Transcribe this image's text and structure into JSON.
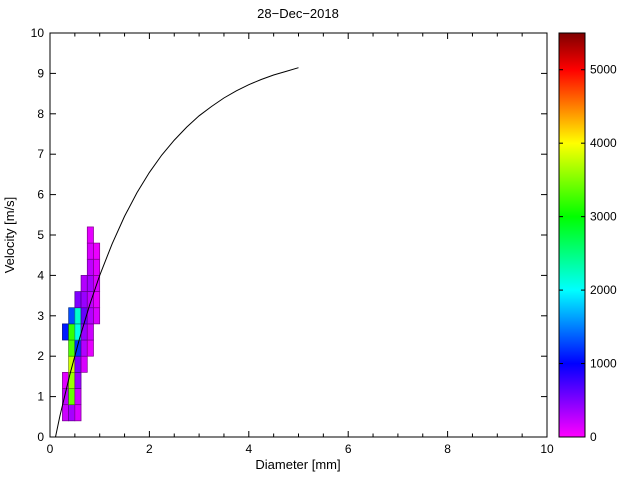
{
  "chart_data": {
    "type": "heatmap",
    "title": "28−Dec−2018",
    "xlabel": "Diameter [mm]",
    "ylabel": "Velocity [m/s]",
    "xlim": [
      0,
      10
    ],
    "ylim": [
      0,
      10
    ],
    "xticks": [
      0,
      2,
      4,
      6,
      8,
      10
    ],
    "x_minor_step": 0.5,
    "yticks": [
      0,
      1,
      2,
      3,
      4,
      5,
      6,
      7,
      8,
      9,
      10
    ],
    "grid": false,
    "legend": "none",
    "axis_color": "#000000",
    "background_color": "#ffffff",
    "colorbar": {
      "position": "right",
      "vmin": 0,
      "vmax": 5500,
      "ticks": [
        0,
        1000,
        2000,
        3000,
        4000,
        5000
      ],
      "colormap": [
        {
          "value": 0,
          "color": "#ff00ff"
        },
        {
          "value": 1000,
          "color": "#0000ff"
        },
        {
          "value": 2000,
          "color": "#00ffff"
        },
        {
          "value": 3000,
          "color": "#00ff00"
        },
        {
          "value": 4000,
          "color": "#ffff00"
        },
        {
          "value": 5000,
          "color": "#ff0000"
        },
        {
          "value": 5500,
          "color": "#7f0000"
        }
      ]
    },
    "cell_size": {
      "w": 0.125,
      "h": 0.4
    },
    "cells": [
      {
        "d": 0.25,
        "v": 0.4,
        "count": 200
      },
      {
        "d": 0.375,
        "v": 0.4,
        "count": 350
      },
      {
        "d": 0.5,
        "v": 0.4,
        "count": 150
      },
      {
        "d": 0.25,
        "v": 0.8,
        "count": 250
      },
      {
        "d": 0.375,
        "v": 0.8,
        "count": 3400
      },
      {
        "d": 0.5,
        "v": 0.8,
        "count": 200
      },
      {
        "d": 0.25,
        "v": 1.2,
        "count": 120
      },
      {
        "d": 0.375,
        "v": 1.2,
        "count": 3600
      },
      {
        "d": 0.5,
        "v": 1.2,
        "count": 400
      },
      {
        "d": 0.375,
        "v": 1.6,
        "count": 3800
      },
      {
        "d": 0.5,
        "v": 1.6,
        "count": 500
      },
      {
        "d": 0.625,
        "v": 1.6,
        "count": 150
      },
      {
        "d": 0.375,
        "v": 2.0,
        "count": 3300
      },
      {
        "d": 0.5,
        "v": 2.0,
        "count": 1200
      },
      {
        "d": 0.625,
        "v": 2.0,
        "count": 300
      },
      {
        "d": 0.75,
        "v": 2.0,
        "count": 100
      },
      {
        "d": 0.25,
        "v": 2.4,
        "count": 1100
      },
      {
        "d": 0.375,
        "v": 2.4,
        "count": 3200
      },
      {
        "d": 0.5,
        "v": 2.4,
        "count": 2100
      },
      {
        "d": 0.625,
        "v": 2.4,
        "count": 400
      },
      {
        "d": 0.75,
        "v": 2.4,
        "count": 200
      },
      {
        "d": 0.375,
        "v": 2.8,
        "count": 1300
      },
      {
        "d": 0.5,
        "v": 2.8,
        "count": 2200
      },
      {
        "d": 0.625,
        "v": 2.8,
        "count": 600
      },
      {
        "d": 0.75,
        "v": 2.8,
        "count": 300
      },
      {
        "d": 0.875,
        "v": 2.8,
        "count": 150
      },
      {
        "d": 0.5,
        "v": 3.2,
        "count": 500
      },
      {
        "d": 0.625,
        "v": 3.2,
        "count": 400
      },
      {
        "d": 0.75,
        "v": 3.2,
        "count": 250
      },
      {
        "d": 0.875,
        "v": 3.2,
        "count": 100
      },
      {
        "d": 0.625,
        "v": 3.6,
        "count": 300
      },
      {
        "d": 0.75,
        "v": 3.6,
        "count": 350
      },
      {
        "d": 0.875,
        "v": 3.6,
        "count": 150
      },
      {
        "d": 0.75,
        "v": 4.0,
        "count": 250
      },
      {
        "d": 0.875,
        "v": 4.0,
        "count": 120
      },
      {
        "d": 0.75,
        "v": 4.4,
        "count": 150
      },
      {
        "d": 0.875,
        "v": 4.4,
        "count": 80
      },
      {
        "d": 0.75,
        "v": 4.8,
        "count": 100
      }
    ],
    "curve": {
      "name": "terminal-velocity-curve",
      "color": "#000000",
      "points": [
        [
          0.11,
          0
        ],
        [
          0.2,
          0.52
        ],
        [
          0.4,
          1.55
        ],
        [
          0.6,
          2.46
        ],
        [
          0.8,
          3.28
        ],
        [
          1.0,
          4.0
        ],
        [
          1.25,
          4.78
        ],
        [
          1.5,
          5.46
        ],
        [
          1.75,
          6.05
        ],
        [
          2.0,
          6.55
        ],
        [
          2.25,
          6.98
        ],
        [
          2.5,
          7.35
        ],
        [
          2.75,
          7.67
        ],
        [
          3.0,
          7.95
        ],
        [
          3.25,
          8.18
        ],
        [
          3.5,
          8.39
        ],
        [
          3.75,
          8.57
        ],
        [
          4.0,
          8.72
        ],
        [
          4.25,
          8.85
        ],
        [
          4.5,
          8.96
        ],
        [
          4.75,
          9.05
        ],
        [
          5.0,
          9.14
        ]
      ]
    }
  }
}
